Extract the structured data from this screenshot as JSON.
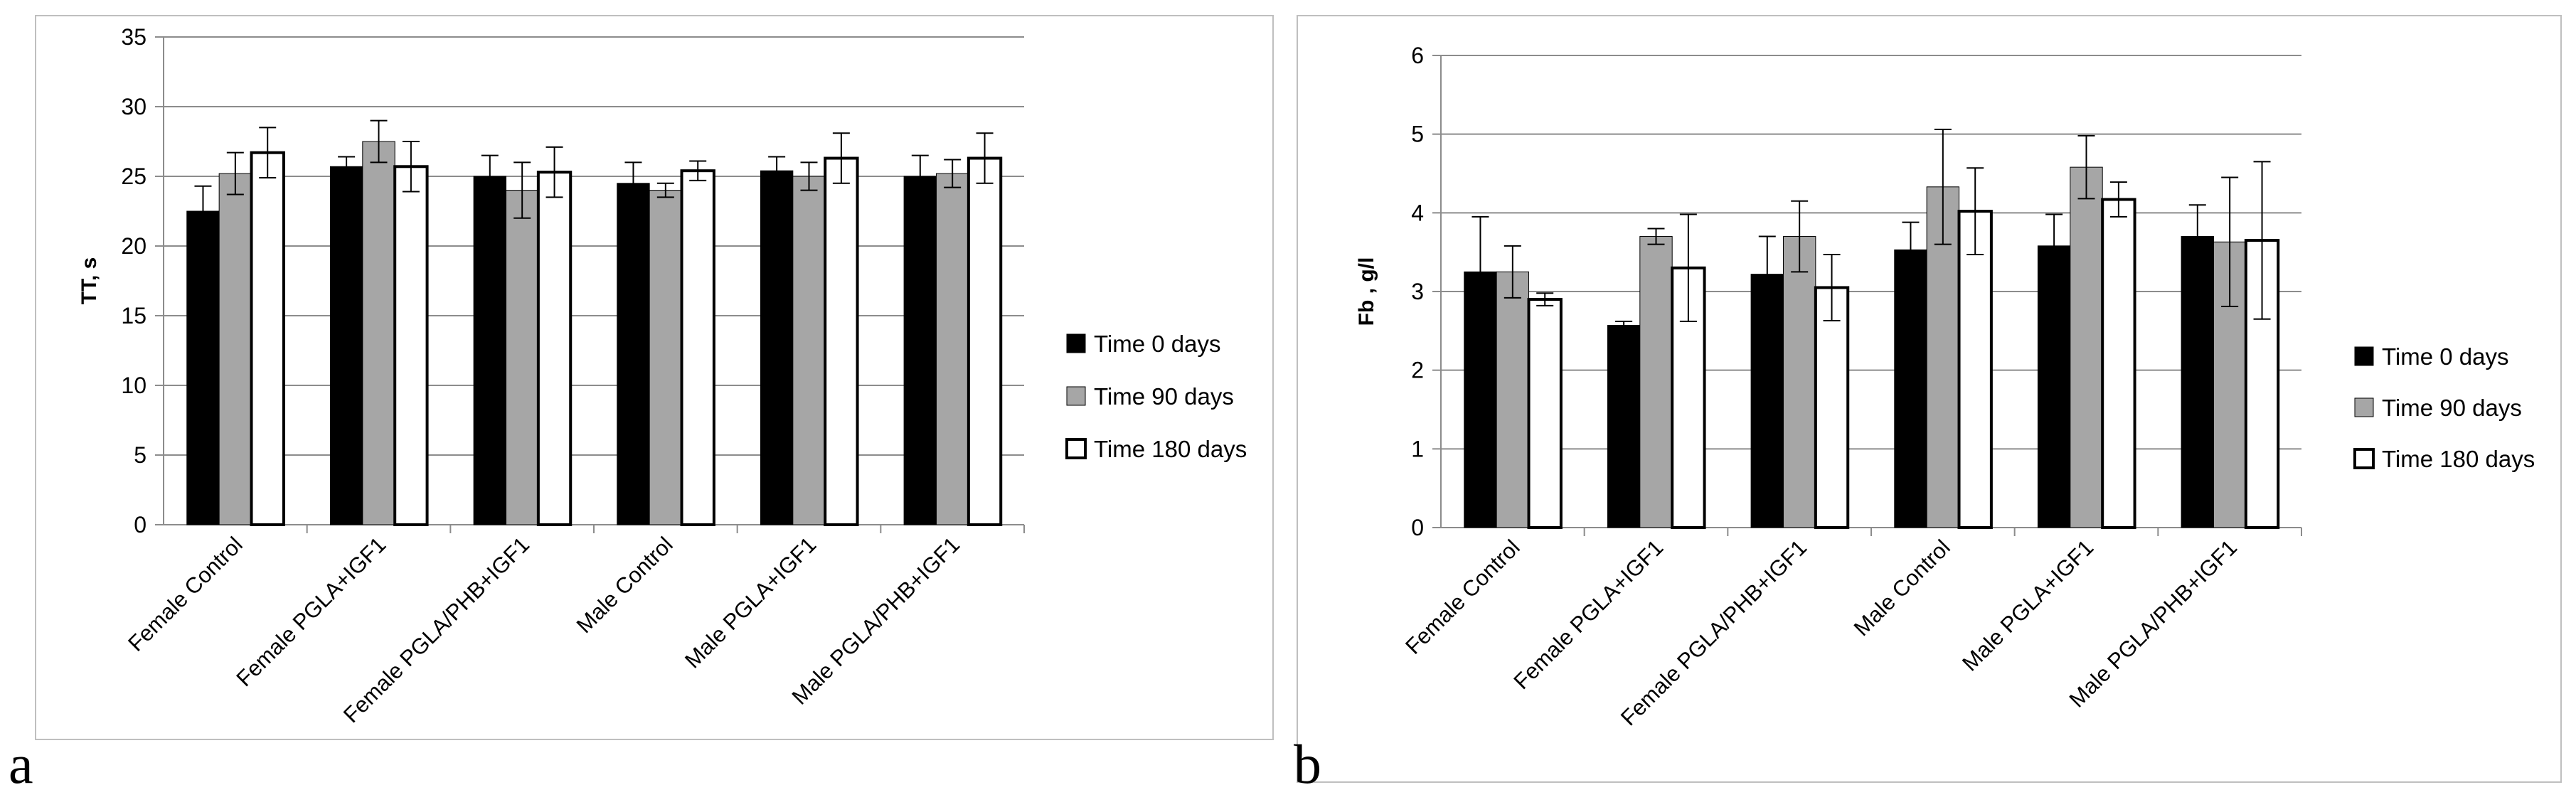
{
  "chart_data": [
    {
      "type": "bar",
      "panel_label": "a",
      "ylabel": "TT, s",
      "ylim": [
        0,
        35
      ],
      "yticks": [
        "0",
        "5",
        "10",
        "15",
        "20",
        "25",
        "30",
        "35"
      ],
      "categories": [
        "Female Control",
        "Female PGLA+IGF1",
        "Female PGLA/PHB+IGF1",
        "Male Control",
        "Male PGLA+IGF1",
        "Male PGLA/PHB+IGF1"
      ],
      "series": [
        {
          "name": "Time 0 days",
          "color": "#000000",
          "values": [
            22.5,
            25.7,
            25.0,
            24.5,
            25.4,
            25.0
          ],
          "errors": [
            1.8,
            0.7,
            1.5,
            1.5,
            1.0,
            1.5
          ]
        },
        {
          "name": "Time 90 days",
          "color": "#a6a6a6",
          "values": [
            25.2,
            27.5,
            24.0,
            24.0,
            25.0,
            25.2
          ],
          "errors": [
            1.5,
            1.5,
            2.0,
            0.5,
            1.0,
            1.0
          ]
        },
        {
          "name": "Time 180 days",
          "color": "#ffffff",
          "values": [
            26.7,
            25.7,
            25.3,
            25.4,
            26.3,
            26.3
          ],
          "errors": [
            1.8,
            1.8,
            1.8,
            0.7,
            1.8,
            1.8
          ]
        }
      ],
      "grid": true,
      "legend": "right"
    },
    {
      "type": "bar",
      "panel_label": "b",
      "ylabel": "Fb , g/l",
      "ylim": [
        0,
        6
      ],
      "yticks": [
        "0",
        "1",
        "2",
        "3",
        "4",
        "5",
        "6"
      ],
      "categories": [
        "Female Control",
        "Female PGLA+IGF1",
        "Female PGLA/PHB+IGF1",
        "Male Control",
        "Male PGLA+IGF1",
        "Male PGLA/PHB+IGF1"
      ],
      "series": [
        {
          "name": "Time 0 days",
          "color": "#000000",
          "values": [
            3.25,
            2.57,
            3.22,
            3.53,
            3.58,
            3.7
          ],
          "errors": [
            0.7,
            0.05,
            0.48,
            0.35,
            0.4,
            0.4
          ]
        },
        {
          "name": "Time 90 days",
          "color": "#a6a6a6",
          "values": [
            3.25,
            3.7,
            3.7,
            4.33,
            4.58,
            3.63
          ],
          "errors": [
            0.33,
            0.1,
            0.45,
            0.73,
            0.4,
            0.82
          ]
        },
        {
          "name": "Time 180 days",
          "color": "#ffffff",
          "values": [
            2.9,
            3.3,
            3.05,
            4.02,
            4.17,
            3.65
          ],
          "errors": [
            0.08,
            0.68,
            0.42,
            0.55,
            0.22,
            1.0
          ]
        }
      ],
      "grid": true,
      "legend": "right"
    }
  ]
}
